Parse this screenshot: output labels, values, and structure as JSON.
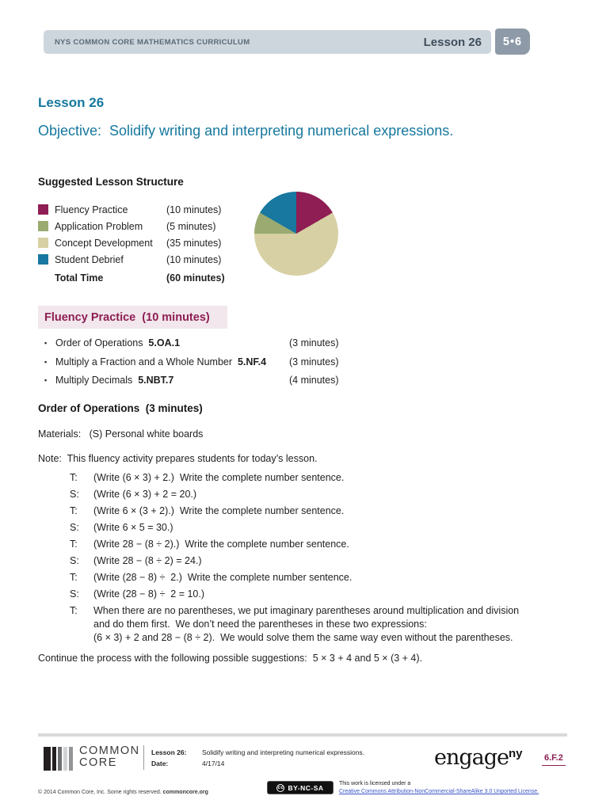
{
  "header": {
    "curriculum_label": "NYS COMMON CORE MATHEMATICS CURRICULUM",
    "lesson_label": "Lesson 26",
    "module_badge": "5•6",
    "bar_color": "#cdd6dd",
    "badge_color": "#8f9aa8"
  },
  "title_block": {
    "lesson_heading": "Lesson 26",
    "objective": "Objective:  Solidify writing and interpreting numerical expressions.",
    "accent_color": "#16789e"
  },
  "lesson_structure": {
    "heading": "Suggested Lesson Structure",
    "legend": [
      {
        "label": "Fluency Practice",
        "time": "(10 minutes)",
        "color": "#8e1e53"
      },
      {
        "label": "Application Problem",
        "time": "(5 minutes)",
        "color": "#9aaa70"
      },
      {
        "label": "Concept Development",
        "time": "(35 minutes)",
        "color": "#d6d0a4"
      },
      {
        "label": "Student Debrief",
        "time": "(10 minutes)",
        "color": "#1878a0"
      }
    ],
    "total_label": "Total Time",
    "total_time": "(60 minutes)"
  },
  "chart_data": {
    "type": "pie",
    "title": "Suggested Lesson Structure",
    "unit": "minutes",
    "total": 60,
    "categories": [
      "Fluency Practice",
      "Application Problem",
      "Concept Development",
      "Student Debrief"
    ],
    "values": [
      10,
      5,
      35,
      10
    ],
    "colors": [
      "#8e1e53",
      "#9aaa70",
      "#d6d0a4",
      "#1878a0"
    ],
    "legend_position": "left",
    "slices_clockwise_from_top": [
      {
        "label": "Fluency Practice",
        "value": 10,
        "color": "#8e1e53"
      },
      {
        "label": "Concept Development",
        "value": 35,
        "color": "#d6d0a4"
      },
      {
        "label": "Application Problem",
        "value": 5,
        "color": "#9aaa70"
      },
      {
        "label": "Student Debrief",
        "value": 10,
        "color": "#1878a0"
      }
    ]
  },
  "fluency_section": {
    "banner": "Fluency Practice  (10 minutes)",
    "banner_bg": "#f1e7ec",
    "banner_color": "#8e1e53",
    "items": [
      {
        "name": "Order of Operations",
        "standard": "5.OA.1",
        "time": "(3 minutes)"
      },
      {
        "name": "Multiply a Fraction and a Whole Number",
        "standard": "5.NF.4",
        "time": "(3 minutes)"
      },
      {
        "name": "Multiply Decimals",
        "standard": "5.NBT.7",
        "time": "(4 minutes)"
      }
    ]
  },
  "order_of_operations": {
    "heading": "Order of Operations  (3 minutes)",
    "materials": "Materials:   (S) Personal white boards",
    "note": "Note:  This fluency activity prepares students for today’s lesson.",
    "dialogue": [
      {
        "speaker": "T:",
        "text": "(Write (6 × 3) + 2.)  Write the complete number sentence."
      },
      {
        "speaker": "S:",
        "text": "(Write (6 × 3) + 2 = 20.)"
      },
      {
        "speaker": "T:",
        "text": "(Write 6 × (3 + 2).)  Write the complete number sentence."
      },
      {
        "speaker": "S:",
        "text": "(Write 6 × 5 = 30.)"
      },
      {
        "speaker": "T:",
        "text": "(Write 28 − (8 ÷ 2).)  Write the complete number sentence."
      },
      {
        "speaker": "S:",
        "text": "(Write 28 − (8 ÷ 2) = 24.)"
      },
      {
        "speaker": "T:",
        "text": "(Write (28 − 8) ÷  2.)  Write the complete number sentence."
      },
      {
        "speaker": "S:",
        "text": "(Write (28 − 8) ÷  2 = 10.)"
      },
      {
        "speaker": "T:",
        "text": "When there are no parentheses, we put imaginary parentheses around multiplication and division\nand do them first.  We don’t need the parentheses in these two expressions:\n(6 × 3) + 2 and 28 − (8 ÷ 2).  We would solve them the same way even without the parentheses."
      }
    ],
    "continuation": "Continue the process with the following possible suggestions:  5 × 3 + 4 and 5 × (3 + 4)."
  },
  "footer": {
    "logo_line1": "COMMON",
    "logo_line2": "CORE",
    "lesson_label": "Lesson 26:",
    "date_label": "Date:",
    "lesson_desc": "Solidify writing and interpreting numerical expressions.",
    "date_value": "4/17/14",
    "engage_text": "engage",
    "engage_sup": "ny",
    "page_ref": "6.F.2",
    "copyright_text": "© 2014 Common Core, Inc. Some rights reserved. ",
    "copyright_bold": "commoncore.org",
    "cc_badge_label": "BY-NC-SA",
    "cc_badge_circle": "cc",
    "license_intro": "This work is licensed under a",
    "license_link": "Creative Commons Attribution-NonCommercial-ShareAlike 3.0 Unported License."
  }
}
